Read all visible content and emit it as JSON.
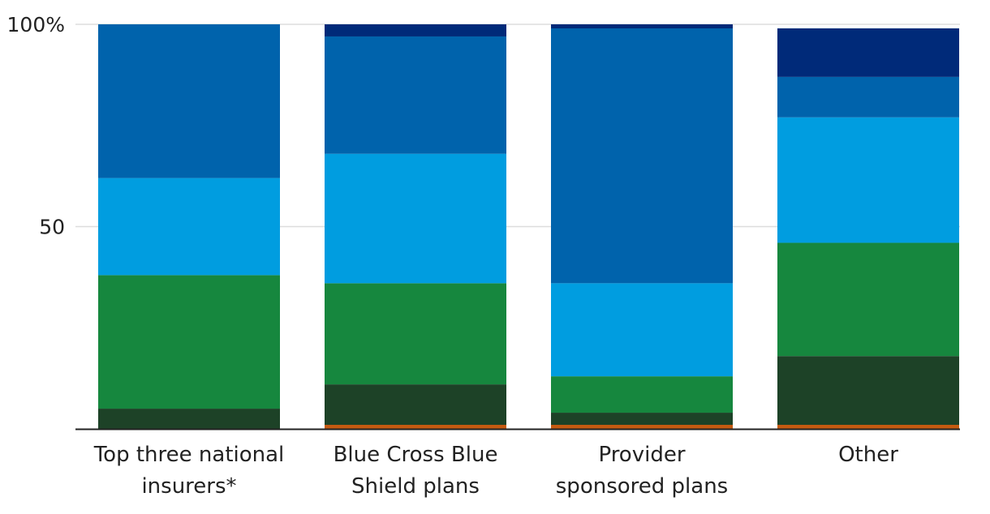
{
  "chart_data": {
    "type": "bar",
    "stacked": true,
    "categories": [
      [
        "Top three national",
        "insurers*"
      ],
      [
        "Blue Cross Blue",
        "Shield plans"
      ],
      [
        "Provider",
        "sponsored plans"
      ],
      [
        "Other"
      ]
    ],
    "series": [
      {
        "color": "#c55a11",
        "values": [
          0,
          1,
          1,
          1
        ]
      },
      {
        "color": "#1d4227",
        "values": [
          5,
          10,
          3,
          17
        ]
      },
      {
        "color": "#16873e",
        "values": [
          33,
          25,
          9,
          28
        ]
      },
      {
        "color": "#009de0",
        "values": [
          24,
          32,
          23,
          31
        ]
      },
      {
        "color": "#0063ac",
        "values": [
          38,
          29,
          63,
          10
        ]
      },
      {
        "color": "#002a79",
        "values": [
          0,
          3,
          1,
          12
        ]
      }
    ],
    "ylim": [
      0,
      100
    ],
    "yticks": [
      {
        "value": 100,
        "label": "100%"
      },
      {
        "value": 50,
        "label": "50"
      }
    ],
    "grid": true,
    "title": "",
    "xlabel": "",
    "ylabel": ""
  }
}
